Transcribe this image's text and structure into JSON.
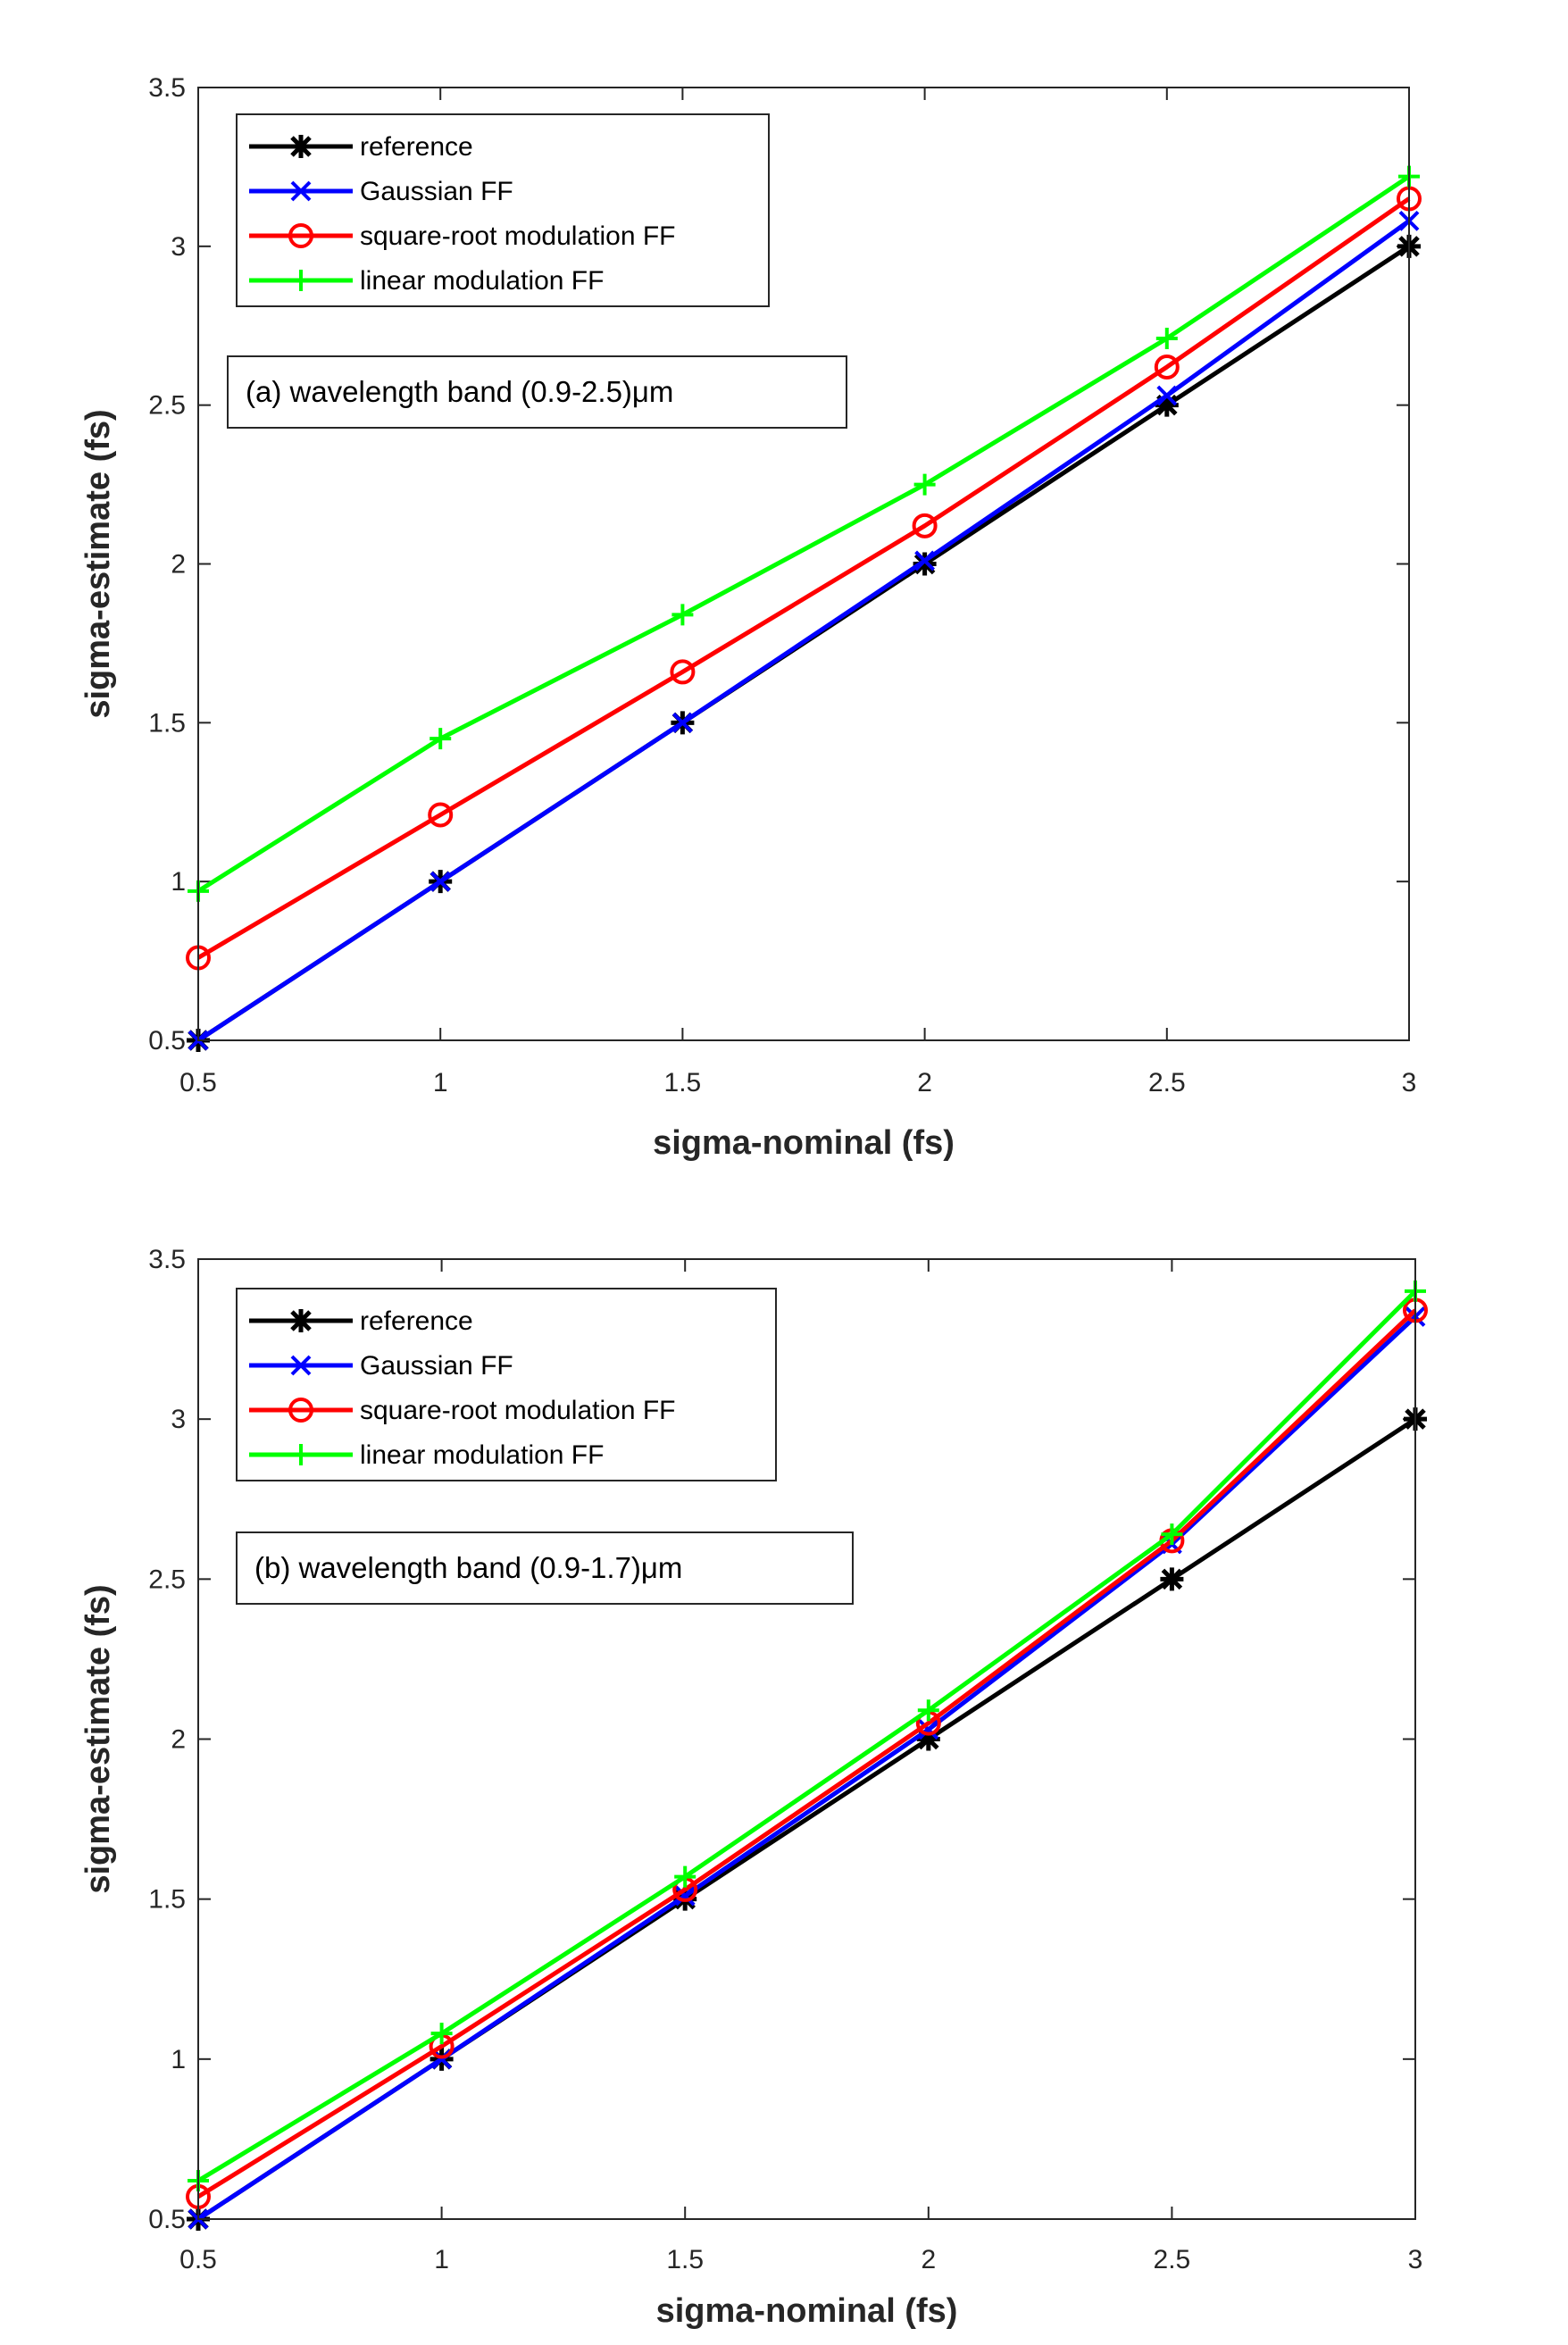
{
  "chart_data": [
    {
      "type": "line",
      "xlabel": "sigma-nominal (fs)",
      "ylabel": "sigma-estimate (fs)",
      "xlim": [
        0.5,
        3
      ],
      "ylim": [
        0.5,
        3.5
      ],
      "xticks": [
        "0.5",
        "1",
        "1.5",
        "2",
        "2.5",
        "3"
      ],
      "yticks": [
        "0.5",
        "1",
        "1.5",
        "2",
        "2.5",
        "3",
        "3.5"
      ],
      "annotation": "(a) wavelength band (0.9-2.5)μm",
      "legend_position": "top-left",
      "grid": false,
      "x": [
        0.5,
        1,
        1.5,
        2,
        2.5,
        3
      ],
      "series": [
        {
          "name": "reference",
          "color": "#000000",
          "marker": "asterisk",
          "values": [
            0.5,
            1.0,
            1.5,
            2.0,
            2.5,
            3.0
          ]
        },
        {
          "name": "Gaussian FF",
          "color": "#0000ff",
          "marker": "x",
          "values": [
            0.5,
            1.0,
            1.5,
            2.01,
            2.53,
            3.08
          ]
        },
        {
          "name": "square-root modulation FF",
          "color": "#ff0000",
          "marker": "circle",
          "values": [
            0.76,
            1.21,
            1.66,
            2.12,
            2.62,
            3.15
          ]
        },
        {
          "name": "linear modulation FF",
          "color": "#00ff00",
          "marker": "plus",
          "values": [
            0.97,
            1.45,
            1.84,
            2.25,
            2.71,
            3.22
          ]
        }
      ]
    },
    {
      "type": "line",
      "xlabel": "sigma-nominal (fs)",
      "ylabel": "sigma-estimate (fs)",
      "xlim": [
        0.5,
        3
      ],
      "ylim": [
        0.5,
        3.5
      ],
      "xticks": [
        "0.5",
        "1",
        "1.5",
        "2",
        "2.5",
        "3"
      ],
      "yticks": [
        "0.5",
        "1",
        "1.5",
        "2",
        "2.5",
        "3",
        "3.5"
      ],
      "annotation": "(b) wavelength band (0.9-1.7)μm",
      "legend_position": "top-left",
      "grid": false,
      "x": [
        0.5,
        1,
        1.5,
        2,
        2.5,
        3
      ],
      "series": [
        {
          "name": "reference",
          "color": "#000000",
          "marker": "asterisk",
          "values": [
            0.5,
            1.0,
            1.5,
            2.0,
            2.5,
            3.0
          ]
        },
        {
          "name": "Gaussian FF",
          "color": "#0000ff",
          "marker": "x",
          "values": [
            0.5,
            1.0,
            1.51,
            2.03,
            2.61,
            3.32
          ]
        },
        {
          "name": "square-root modulation FF",
          "color": "#ff0000",
          "marker": "circle",
          "values": [
            0.57,
            1.04,
            1.53,
            2.05,
            2.62,
            3.34
          ]
        },
        {
          "name": "linear modulation FF",
          "color": "#00ff00",
          "marker": "plus",
          "values": [
            0.62,
            1.08,
            1.57,
            2.09,
            2.64,
            3.4
          ]
        }
      ]
    }
  ]
}
